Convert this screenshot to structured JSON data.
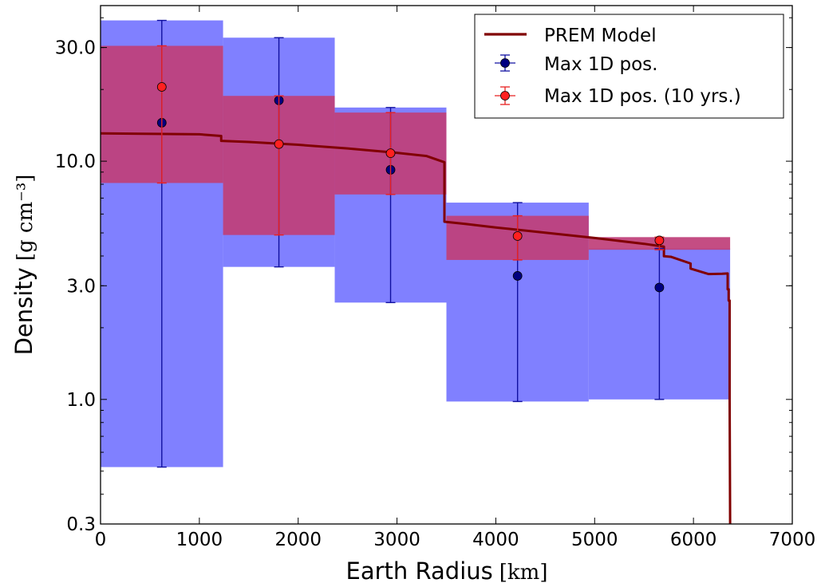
{
  "chart_data": {
    "type": "line",
    "xlabel": "Earth Radius",
    "xunit": "[km]",
    "ylabel": "Density",
    "yunit": "[g cm⁻³]",
    "xlim": [
      0,
      7000
    ],
    "ylim": [
      0.3,
      45
    ],
    "yscale": "log",
    "xticks": [
      "0",
      "1000",
      "2000",
      "3000",
      "4000",
      "5000",
      "6000",
      "7000"
    ],
    "xtick_values": [
      0,
      1000,
      2000,
      3000,
      4000,
      5000,
      6000,
      7000
    ],
    "yticks": [
      "0.3",
      "1.0",
      "3.0",
      "10.0",
      "30.0"
    ],
    "ytick_values": [
      0.3,
      1.0,
      3.0,
      10.0,
      30.0
    ],
    "grid": false,
    "legend_position": "top-right",
    "colors": {
      "prem": "#800000",
      "blue_band": "#8080ff",
      "red_band": "#c0407a",
      "blue_point": "#000080",
      "blue_bar": "#1010a0",
      "red_point": "#ff2020",
      "red_bar": "#e82020",
      "axis": "#000000"
    },
    "bins": [
      {
        "x0": 0,
        "x1": 1240
      },
      {
        "x0": 1240,
        "x1": 2370
      },
      {
        "x0": 2370,
        "x1": 3500
      },
      {
        "x0": 3500,
        "x1": 4940
      },
      {
        "x0": 4940,
        "x1": 6371
      }
    ],
    "series": [
      {
        "name": "PREM Model",
        "kind": "line",
        "x": [
          0,
          1000,
          1221,
          1221,
          1500,
          2000,
          2500,
          3000,
          3300,
          3480,
          3480,
          3700,
          4000,
          4500,
          5000,
          5500,
          5701,
          5701,
          5771,
          5971,
          5971,
          6151,
          6291,
          6346,
          6346,
          6356,
          6356,
          6366,
          6366,
          6371
        ],
        "y": [
          13.09,
          12.97,
          12.76,
          12.17,
          12.04,
          11.72,
          11.31,
          10.84,
          10.51,
          9.9,
          5.57,
          5.45,
          5.27,
          5.01,
          4.76,
          4.5,
          4.38,
          3.99,
          3.97,
          3.72,
          3.54,
          3.36,
          3.37,
          3.38,
          2.9,
          2.9,
          2.6,
          2.6,
          1.02,
          0.3
        ]
      },
      {
        "name": "Max 1D pos.",
        "kind": "errorbar",
        "x": [
          620,
          1805,
          2935,
          4220,
          5655
        ],
        "y": [
          14.5,
          18.0,
          9.2,
          3.3,
          2.95
        ],
        "ylow": [
          0.52,
          3.6,
          2.55,
          0.98,
          1.0
        ],
        "yhigh": [
          39.0,
          33.0,
          16.8,
          6.7,
          4.3
        ]
      },
      {
        "name": "Max 1D pos. (10 yrs.)",
        "kind": "errorbar",
        "x": [
          620,
          1805,
          2935,
          4220,
          5655
        ],
        "y": [
          20.5,
          11.8,
          10.8,
          4.85,
          4.65
        ],
        "ylow": [
          8.1,
          4.9,
          7.25,
          3.85,
          4.25
        ],
        "yhigh": [
          30.5,
          18.8,
          16.0,
          5.9,
          4.8
        ]
      }
    ]
  }
}
